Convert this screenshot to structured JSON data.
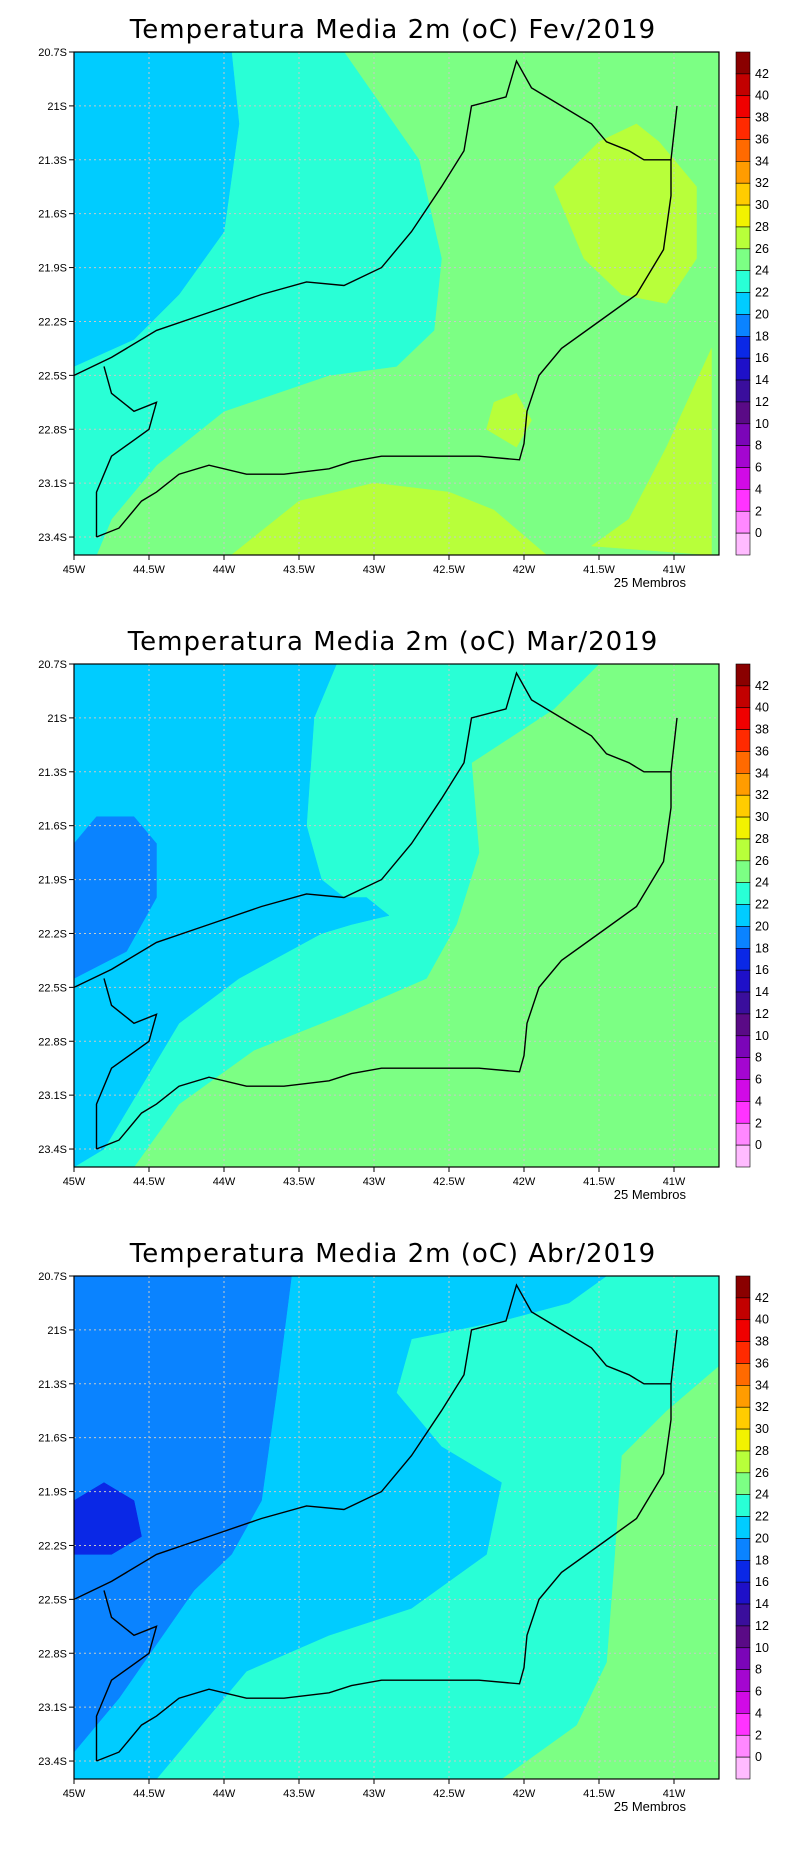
{
  "panels": [
    {
      "title": "Temperatura Media 2m (oC) Fev/2019",
      "footer": "25 Membros",
      "background_bin": "24-26",
      "regions": [
        {
          "bin": "22-24",
          "lonlat": [
            [
              -45,
              -20.7
            ],
            [
              -43.2,
              -20.7
            ],
            [
              -42.7,
              -21.3
            ],
            [
              -42.55,
              -21.85
            ],
            [
              -42.6,
              -22.25
            ],
            [
              -42.85,
              -22.45
            ],
            [
              -43.3,
              -22.5
            ],
            [
              -44,
              -22.7
            ],
            [
              -44.45,
              -23.0
            ],
            [
              -44.75,
              -23.3
            ],
            [
              -44.85,
              -23.5
            ],
            [
              -45,
              -23.5
            ]
          ]
        },
        {
          "bin": "20-22",
          "lonlat": [
            [
              -45,
              -20.7
            ],
            [
              -43.95,
              -20.7
            ],
            [
              -43.9,
              -21.1
            ],
            [
              -44.0,
              -21.7
            ],
            [
              -44.3,
              -22.05
            ],
            [
              -44.6,
              -22.3
            ],
            [
              -45,
              -22.45
            ]
          ]
        },
        {
          "bin": "26-28",
          "lonlat": [
            [
              -41.5,
              -21.2
            ],
            [
              -41.8,
              -21.45
            ],
            [
              -41.6,
              -21.85
            ],
            [
              -41.35,
              -22.05
            ],
            [
              -41.05,
              -22.1
            ],
            [
              -40.85,
              -21.85
            ],
            [
              -40.85,
              -21.45
            ],
            [
              -41.1,
              -21.2
            ],
            [
              -41.25,
              -21.1
            ]
          ]
        },
        {
          "bin": "26-28",
          "lonlat": [
            [
              -40.75,
              -22.35
            ],
            [
              -41.05,
              -22.9
            ],
            [
              -41.3,
              -23.3
            ],
            [
              -41.55,
              -23.45
            ],
            [
              -40.75,
              -23.5
            ]
          ]
        },
        {
          "bin": "26-28",
          "lonlat": [
            [
              -43.95,
              -23.5
            ],
            [
              -43.5,
              -23.2
            ],
            [
              -43.0,
              -23.1
            ],
            [
              -42.5,
              -23.15
            ],
            [
              -42.2,
              -23.25
            ],
            [
              -41.85,
              -23.5
            ]
          ]
        },
        {
          "bin": "26-28",
          "lonlat": [
            [
              -42.2,
              -22.65
            ],
            [
              -42.05,
              -22.6
            ],
            [
              -41.95,
              -22.75
            ],
            [
              -42.05,
              -22.9
            ],
            [
              -42.25,
              -22.8
            ]
          ]
        }
      ]
    },
    {
      "title": "Temperatura Media 2m (oC) Mar/2019",
      "footer": "25 Membros",
      "background_bin": "24-26",
      "regions": [
        {
          "bin": "22-24",
          "lonlat": [
            [
              -45,
              -20.7
            ],
            [
              -41.5,
              -20.7
            ],
            [
              -41.8,
              -20.95
            ],
            [
              -42.35,
              -21.25
            ],
            [
              -42.3,
              -21.75
            ],
            [
              -42.45,
              -22.15
            ],
            [
              -42.65,
              -22.45
            ],
            [
              -43.2,
              -22.65
            ],
            [
              -43.8,
              -22.85
            ],
            [
              -44.3,
              -23.15
            ],
            [
              -44.6,
              -23.5
            ],
            [
              -45,
              -23.5
            ]
          ]
        },
        {
          "bin": "20-22",
          "lonlat": [
            [
              -45,
              -20.7
            ],
            [
              -43.25,
              -20.7
            ],
            [
              -43.4,
              -21.0
            ],
            [
              -43.45,
              -21.6
            ],
            [
              -43.35,
              -21.9
            ],
            [
              -43.2,
              -22.0
            ],
            [
              -43.05,
              -22.0
            ],
            [
              -42.9,
              -22.1
            ],
            [
              -43.15,
              -22.15
            ],
            [
              -43.35,
              -22.2
            ],
            [
              -43.9,
              -22.45
            ],
            [
              -44.3,
              -22.7
            ],
            [
              -44.55,
              -23.05
            ],
            [
              -44.8,
              -23.4
            ],
            [
              -45,
              -23.5
            ]
          ]
        },
        {
          "bin": "18-20",
          "lonlat": [
            [
              -45,
              -21.7
            ],
            [
              -44.85,
              -21.55
            ],
            [
              -44.6,
              -21.55
            ],
            [
              -44.45,
              -21.7
            ],
            [
              -44.45,
              -22.0
            ],
            [
              -44.65,
              -22.3
            ],
            [
              -45,
              -22.45
            ]
          ]
        }
      ]
    },
    {
      "title": "Temperatura Media 2m (oC) Abr/2019",
      "footer": "25 Membros",
      "background_bin": "24-26",
      "regions": [
        {
          "bin": "22-24",
          "lonlat": [
            [
              -45,
              -20.7
            ],
            [
              -40.7,
              -20.7
            ],
            [
              -40.7,
              -21.2
            ],
            [
              -41.05,
              -21.45
            ],
            [
              -41.35,
              -21.7
            ],
            [
              -41.4,
              -22.3
            ],
            [
              -41.45,
              -22.85
            ],
            [
              -41.65,
              -23.2
            ],
            [
              -42.15,
              -23.5
            ],
            [
              -45,
              -23.5
            ]
          ]
        },
        {
          "bin": "20-22",
          "lonlat": [
            [
              -45,
              -20.7
            ],
            [
              -41.45,
              -20.7
            ],
            [
              -41.7,
              -20.85
            ],
            [
              -42.15,
              -20.95
            ],
            [
              -42.75,
              -21.05
            ],
            [
              -42.85,
              -21.35
            ],
            [
              -42.55,
              -21.65
            ],
            [
              -42.15,
              -21.85
            ],
            [
              -42.25,
              -22.25
            ],
            [
              -42.75,
              -22.55
            ],
            [
              -43.3,
              -22.7
            ],
            [
              -43.85,
              -22.9
            ],
            [
              -44.3,
              -23.35
            ],
            [
              -44.45,
              -23.5
            ],
            [
              -45,
              -23.5
            ]
          ]
        },
        {
          "bin": "18-20",
          "lonlat": [
            [
              -45,
              -20.7
            ],
            [
              -43.55,
              -20.7
            ],
            [
              -43.65,
              -21.35
            ],
            [
              -43.75,
              -21.95
            ],
            [
              -43.95,
              -22.25
            ],
            [
              -44.2,
              -22.45
            ],
            [
              -44.45,
              -22.75
            ],
            [
              -44.7,
              -23.05
            ],
            [
              -44.95,
              -23.3
            ],
            [
              -45,
              -23.35
            ]
          ]
        },
        {
          "bin": "16-18",
          "lonlat": [
            [
              -45,
              -21.95
            ],
            [
              -44.8,
              -21.85
            ],
            [
              -44.6,
              -21.95
            ],
            [
              -44.55,
              -22.15
            ],
            [
              -44.75,
              -22.25
            ],
            [
              -45,
              -22.25
            ]
          ]
        }
      ]
    }
  ],
  "axes": {
    "lon_range": [
      -45,
      -40.7
    ],
    "lat_range": [
      -23.5,
      -20.7
    ],
    "x_ticks": [
      {
        "value": -45,
        "label": "45W"
      },
      {
        "value": -44.5,
        "label": "44.5W"
      },
      {
        "value": -44,
        "label": "44W"
      },
      {
        "value": -43.5,
        "label": "43.5W"
      },
      {
        "value": -43,
        "label": "43W"
      },
      {
        "value": -42.5,
        "label": "42.5W"
      },
      {
        "value": -42,
        "label": "42W"
      },
      {
        "value": -41.5,
        "label": "41.5W"
      },
      {
        "value": -41,
        "label": "41W"
      }
    ],
    "y_ticks": [
      {
        "value": -20.7,
        "label": "20.7S"
      },
      {
        "value": -21.0,
        "label": "21S"
      },
      {
        "value": -21.3,
        "label": "21.3S"
      },
      {
        "value": -21.6,
        "label": "21.6S"
      },
      {
        "value": -21.9,
        "label": "21.9S"
      },
      {
        "value": -22.2,
        "label": "22.2S"
      },
      {
        "value": -22.5,
        "label": "22.5S"
      },
      {
        "value": -22.8,
        "label": "22.8S"
      },
      {
        "value": -23.1,
        "label": "23.1S"
      },
      {
        "value": -23.4,
        "label": "23.4S"
      }
    ],
    "grid": "dotted"
  },
  "colorbar": {
    "labels": [
      "42",
      "40",
      "38",
      "36",
      "34",
      "32",
      "30",
      "28",
      "26",
      "24",
      "22",
      "20",
      "18",
      "16",
      "14",
      "12",
      "10",
      "8",
      "6",
      "4",
      "2",
      "0"
    ],
    "bins": [
      {
        "range": "42-44",
        "color": "#8a0000"
      },
      {
        "range": "40-42",
        "color": "#c20000"
      },
      {
        "range": "38-40",
        "color": "#f00000"
      },
      {
        "range": "36-38",
        "color": "#ff2a00"
      },
      {
        "range": "34-36",
        "color": "#ff6a00"
      },
      {
        "range": "32-34",
        "color": "#ff9c00"
      },
      {
        "range": "30-32",
        "color": "#ffcc00"
      },
      {
        "range": "28-30",
        "color": "#f2f200"
      },
      {
        "range": "26-28",
        "color": "#b8ff3a"
      },
      {
        "range": "24-26",
        "color": "#7cff84"
      },
      {
        "range": "22-24",
        "color": "#29ffd6"
      },
      {
        "range": "20-22",
        "color": "#00ccff"
      },
      {
        "range": "18-20",
        "color": "#0a83ff"
      },
      {
        "range": "16-18",
        "color": "#0a28e6"
      },
      {
        "range": "14-16",
        "color": "#1e10c8"
      },
      {
        "range": "12-14",
        "color": "#3a0e9c"
      },
      {
        "range": "10-12",
        "color": "#5a0a86"
      },
      {
        "range": "8-10",
        "color": "#7b05b8"
      },
      {
        "range": "6-8",
        "color": "#a406d0"
      },
      {
        "range": "4-6",
        "color": "#d10ae6"
      },
      {
        "range": "2-4",
        "color": "#ff33ff"
      },
      {
        "range": "0-2",
        "color": "#ff88ff"
      },
      {
        "range": "below-0",
        "color": "#ffbbff"
      }
    ]
  },
  "coastline_lonlat": [
    [
      -44.85,
      -23.4
    ],
    [
      -44.7,
      -23.35
    ],
    [
      -44.55,
      -23.2
    ],
    [
      -44.45,
      -23.15
    ],
    [
      -44.3,
      -23.05
    ],
    [
      -44.1,
      -23.0
    ],
    [
      -43.85,
      -23.05
    ],
    [
      -43.6,
      -23.05
    ],
    [
      -43.3,
      -23.02
    ],
    [
      -43.15,
      -22.98
    ],
    [
      -42.95,
      -22.95
    ],
    [
      -42.6,
      -22.95
    ],
    [
      -42.3,
      -22.95
    ],
    [
      -42.03,
      -22.97
    ],
    [
      -42.0,
      -22.88
    ],
    [
      -41.98,
      -22.7
    ],
    [
      -41.9,
      -22.5
    ],
    [
      -41.75,
      -22.35
    ],
    [
      -41.5,
      -22.2
    ],
    [
      -41.25,
      -22.05
    ],
    [
      -41.07,
      -21.8
    ],
    [
      -41.02,
      -21.5
    ],
    [
      -41.02,
      -21.3
    ],
    [
      -40.98,
      -21.0
    ]
  ],
  "border_lonlat": [
    [
      -45,
      -22.5
    ],
    [
      -44.75,
      -22.4
    ],
    [
      -44.45,
      -22.25
    ],
    [
      -44.1,
      -22.15
    ],
    [
      -43.75,
      -22.05
    ],
    [
      -43.45,
      -21.98
    ],
    [
      -43.2,
      -22.0
    ],
    [
      -42.95,
      -21.9
    ],
    [
      -42.75,
      -21.7
    ],
    [
      -42.55,
      -21.45
    ],
    [
      -42.4,
      -21.25
    ],
    [
      -42.35,
      -21.0
    ],
    [
      -42.12,
      -20.95
    ],
    [
      -42.05,
      -20.75
    ],
    [
      -41.95,
      -20.9
    ],
    [
      -41.75,
      -21.0
    ],
    [
      -41.55,
      -21.1
    ],
    [
      -41.45,
      -21.2
    ],
    [
      -41.3,
      -21.25
    ],
    [
      -41.2,
      -21.3
    ],
    [
      -41.02,
      -21.3
    ]
  ],
  "rj_sp_border_lonlat": [
    [
      -44.8,
      -22.45
    ],
    [
      -44.75,
      -22.6
    ],
    [
      -44.6,
      -22.7
    ],
    [
      -44.45,
      -22.65
    ],
    [
      -44.5,
      -22.8
    ],
    [
      -44.75,
      -22.95
    ],
    [
      -44.85,
      -23.15
    ],
    [
      -44.85,
      -23.4
    ]
  ]
}
